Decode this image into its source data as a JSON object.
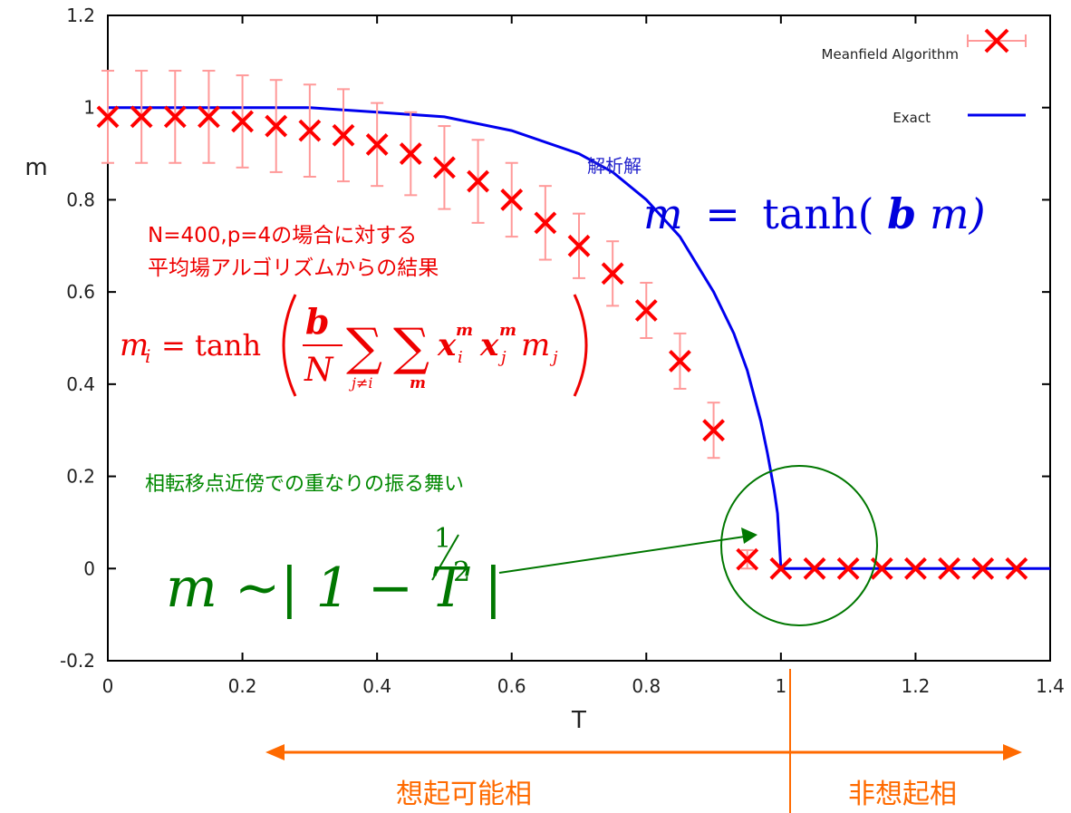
{
  "chart_data": {
    "type": "line",
    "xlabel": "T",
    "ylabel": "m",
    "xlim": [
      0,
      1.4
    ],
    "ylim": [
      -0.2,
      1.2
    ],
    "xticks": [
      "0",
      "0.2",
      "0.4",
      "0.6",
      "0.8",
      "1",
      "1.2",
      "1.4"
    ],
    "yticks": [
      "-0.2",
      "0",
      "0.2",
      "0.4",
      "0.6",
      "0.8",
      "1",
      "1.2"
    ],
    "series": [
      {
        "name": "Meanfield Algorithm",
        "style": "points-with-errorbars",
        "color": "#ff0000",
        "x": [
          0.0,
          0.05,
          0.1,
          0.15,
          0.2,
          0.25,
          0.3,
          0.35,
          0.4,
          0.45,
          0.5,
          0.55,
          0.6,
          0.65,
          0.7,
          0.75,
          0.8,
          0.85,
          0.9,
          0.95,
          1.0,
          1.05,
          1.1,
          1.15,
          1.2,
          1.25,
          1.3,
          1.35
        ],
        "y": [
          0.98,
          0.98,
          0.98,
          0.98,
          0.97,
          0.96,
          0.95,
          0.94,
          0.92,
          0.9,
          0.87,
          0.84,
          0.8,
          0.75,
          0.7,
          0.64,
          0.56,
          0.45,
          0.3,
          0.02,
          0.0,
          0.0,
          0.0,
          0.0,
          0.0,
          0.0,
          0.0,
          0.0
        ],
        "err": [
          0.1,
          0.1,
          0.1,
          0.1,
          0.1,
          0.1,
          0.1,
          0.1,
          0.09,
          0.09,
          0.09,
          0.09,
          0.08,
          0.08,
          0.07,
          0.07,
          0.06,
          0.06,
          0.06,
          0.02,
          0.0,
          0.0,
          0.0,
          0.0,
          0.0,
          0.0,
          0.0,
          0.0
        ]
      },
      {
        "name": "Exact",
        "style": "line",
        "color": "#0000ee",
        "x": [
          0.0,
          0.3,
          0.4,
          0.5,
          0.6,
          0.7,
          0.75,
          0.8,
          0.85,
          0.9,
          0.93,
          0.95,
          0.97,
          0.98,
          0.99,
          0.995,
          1.0,
          1.4
        ],
        "y": [
          1.0,
          1.0,
          0.99,
          0.98,
          0.95,
          0.9,
          0.86,
          0.8,
          0.72,
          0.6,
          0.51,
          0.43,
          0.32,
          0.25,
          0.17,
          0.12,
          0.0,
          0.0
        ]
      }
    ],
    "legend_position": "top-right"
  },
  "annotations": {
    "exact_label": "解析解",
    "exact_formula": {
      "lhs": "m",
      "eq": "=",
      "fn": "tanh(",
      "beta": "b",
      "arg": "m)"
    },
    "meanfield_line1": "N=400,p=4の場合に対する",
    "meanfield_line2": "平均場アルゴリズムからの結果",
    "meanfield_formula": {
      "lhs": "m",
      "lhs_sub": "i",
      "eq": "= tanh",
      "frac_num": "b",
      "frac_den": "N",
      "sum1_sub": "j≠i",
      "sum2_sub": "m",
      "x1": "x",
      "x1_sup": "m",
      "x1_sub": "i",
      "x2": "x",
      "x2_sup": "m",
      "x2_sub": "j",
      "tail": "m",
      "tail_sub": "j"
    },
    "transition_label": "相転移点近傍での重なりの振る舞い",
    "transition_formula": {
      "main": "m ~| 1 − T |",
      "exp_num": "1",
      "exp_den": "2"
    },
    "phase_left": "想起可能相",
    "phase_right": "非想起相"
  },
  "colors": {
    "meanfield": "#ff0000",
    "exact": "#0000ee",
    "errorbar": "#ff9999",
    "green": "#007700",
    "orange": "#ff6a00"
  }
}
